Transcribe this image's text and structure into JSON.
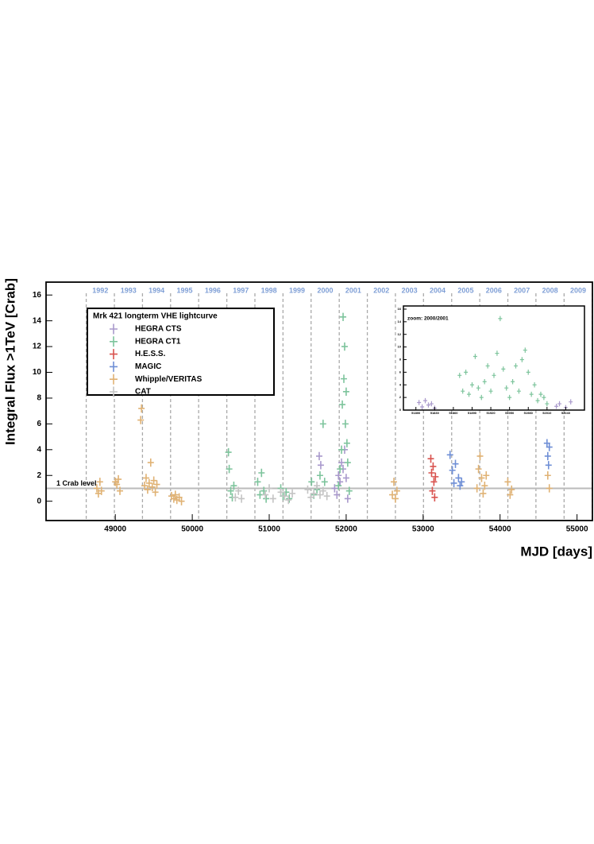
{
  "chart_data": [
    {
      "type": "scatter",
      "legend_title": "Mrk 421 longterm VHE lightcurve",
      "x_label": "MJD [days]",
      "y_label": "Integral Flux >1TeV [Crab]",
      "xlim": [
        48100,
        55200
      ],
      "xticks": [
        49000,
        50000,
        51000,
        52000,
        53000,
        54000,
        55000
      ],
      "ylim": [
        -1.5,
        17
      ],
      "yticks": [
        0,
        2,
        4,
        6,
        8,
        10,
        12,
        14,
        16
      ],
      "legend": true,
      "legend_position": "upper left",
      "reference_line": {
        "value": 1,
        "label": "1 Crab level",
        "color": "#bbbbbb"
      },
      "years": [
        "1992",
        "1993",
        "1994",
        "1995",
        "1996",
        "1997",
        "1998",
        "1999",
        "2000",
        "2001",
        "2002",
        "2003",
        "2004",
        "2005",
        "2006",
        "2007",
        "2008",
        "2009"
      ],
      "year_boundaries": [
        48622,
        48988,
        49353,
        49718,
        50083,
        50449,
        50814,
        51179,
        51544,
        51910,
        52275,
        52640,
        53005,
        53371,
        53736,
        54101,
        54466,
        54832,
        55197
      ],
      "year_color": "#7f9fd6",
      "series": [
        {
          "name": "HEGRA CTS",
          "color": "#a999cc",
          "x": [
            51650,
            51670,
            51850,
            51880,
            51900,
            51920,
            51940,
            51960,
            51980,
            52000,
            52020
          ],
          "values": [
            3.5,
            2.8,
            1.0,
            0.5,
            2.0,
            1.5,
            3.0,
            2.5,
            4.0,
            1.8,
            0.2
          ]
        },
        {
          "name": "HEGRA CT1",
          "color": "#7dc49c",
          "x": [
            50470,
            50480,
            50500,
            50520,
            50540,
            50850,
            50880,
            50900,
            50930,
            50960,
            51150,
            51180,
            51220,
            51260,
            51550,
            51580,
            51620,
            51660,
            51700,
            51720,
            51900,
            51920,
            51940,
            51950,
            51960,
            51970,
            51980,
            51990,
            52000,
            52010,
            52020,
            52040
          ],
          "values": [
            3.8,
            2.5,
            0.8,
            0.3,
            1.2,
            1.5,
            0.5,
            2.2,
            0.8,
            0.2,
            1.0,
            0.4,
            0.7,
            0.2,
            1.5,
            0.5,
            0.9,
            2.0,
            6.0,
            1.5,
            1.2,
            2.5,
            4.0,
            7.5,
            14.3,
            9.5,
            12.0,
            6.0,
            8.5,
            4.5,
            3.0,
            0.8
          ]
        },
        {
          "name": "H.E.S.S.",
          "color": "#d9534f",
          "x": [
            53100,
            53110,
            53120,
            53130,
            53140,
            53150,
            53160
          ],
          "values": [
            3.3,
            2.2,
            0.8,
            2.7,
            1.5,
            0.3,
            1.9
          ]
        },
        {
          "name": "MAGIC",
          "color": "#6f8fd6",
          "x": [
            53350,
            53380,
            53400,
            53420,
            53460,
            53480,
            53500,
            54610,
            54620,
            54630,
            54640
          ],
          "values": [
            3.6,
            2.4,
            1.4,
            2.9,
            1.8,
            1.2,
            1.5,
            4.5,
            3.5,
            2.8,
            4.2
          ]
        },
        {
          "name": "Whipple/VERITAS",
          "color": "#e0b274",
          "x": [
            48760,
            48780,
            48800,
            48820,
            49000,
            49020,
            49040,
            49060,
            49330,
            49340,
            49380,
            49400,
            49420,
            49440,
            49460,
            49480,
            49500,
            49520,
            49540,
            49730,
            49760,
            49780,
            49800,
            49830,
            49860,
            52600,
            52620,
            52640,
            52660,
            53700,
            53720,
            53740,
            53760,
            53780,
            53800,
            53820,
            54100,
            54130,
            54150,
            54620,
            54640
          ],
          "values": [
            1.0,
            0.6,
            1.5,
            0.8,
            1.5,
            1.3,
            1.7,
            0.8,
            6.3,
            7.2,
            1.2,
            1.8,
            0.9,
            1.4,
            3.0,
            1.1,
            1.6,
            0.7,
            1.3,
            0.4,
            0.2,
            0.5,
            0.1,
            0.3,
            0.0,
            0.5,
            1.5,
            0.2,
            0.8,
            1.0,
            2.5,
            3.5,
            1.8,
            0.6,
            1.2,
            2.0,
            1.5,
            0.5,
            0.9,
            2.0,
            1.0
          ]
        },
        {
          "name": "CAT",
          "color": "#c4c4c4",
          "x": [
            50560,
            50600,
            50640,
            50950,
            51000,
            51050,
            51150,
            51200,
            51250,
            51300,
            51500,
            51540,
            51580,
            51620,
            51660,
            51700,
            51750
          ],
          "values": [
            0.3,
            0.8,
            0.2,
            0.5,
            1.0,
            0.2,
            0.7,
            0.4,
            0.1,
            0.6,
            0.9,
            0.3,
            0.6,
            1.2,
            0.5,
            0.8,
            0.4
          ]
        }
      ]
    },
    {
      "type": "scatter",
      "title": "zoom: 2000/2001",
      "xlim": [
        51780,
        52070
      ],
      "xticks": [
        51800,
        51830,
        51860,
        51890,
        51920,
        51950,
        51980,
        52010,
        52040
      ],
      "ylim": [
        0,
        16.5
      ],
      "yticks": [
        0,
        2,
        4,
        6,
        8,
        10,
        12,
        14,
        16
      ],
      "series": [
        {
          "color": "#a999cc",
          "x": [
            51805,
            51810,
            51815,
            51820,
            51825,
            51830,
            52025,
            52030,
            52040,
            52048
          ],
          "values": [
            1.2,
            0.5,
            1.5,
            0.8,
            1.0,
            0.3,
            0.6,
            1.0,
            0.4,
            1.3
          ]
        },
        {
          "color": "#7dc49c",
          "x": [
            51870,
            51875,
            51880,
            51885,
            51890,
            51895,
            51900,
            51905,
            51910,
            51915,
            51920,
            51925,
            51930,
            51935,
            51940,
            51945,
            51950,
            51955,
            51960,
            51965,
            51970,
            51975,
            51980,
            51985,
            51990,
            51995,
            52000,
            52005,
            52010
          ],
          "values": [
            5.5,
            3.0,
            6.0,
            2.5,
            4.0,
            8.5,
            3.5,
            2.0,
            4.5,
            7.0,
            3.0,
            5.5,
            9.0,
            14.5,
            6.5,
            3.5,
            2.0,
            4.5,
            7.0,
            3.0,
            8.0,
            9.5,
            6.0,
            2.5,
            4.0,
            1.5,
            2.5,
            2.0,
            1.0
          ]
        }
      ]
    }
  ]
}
